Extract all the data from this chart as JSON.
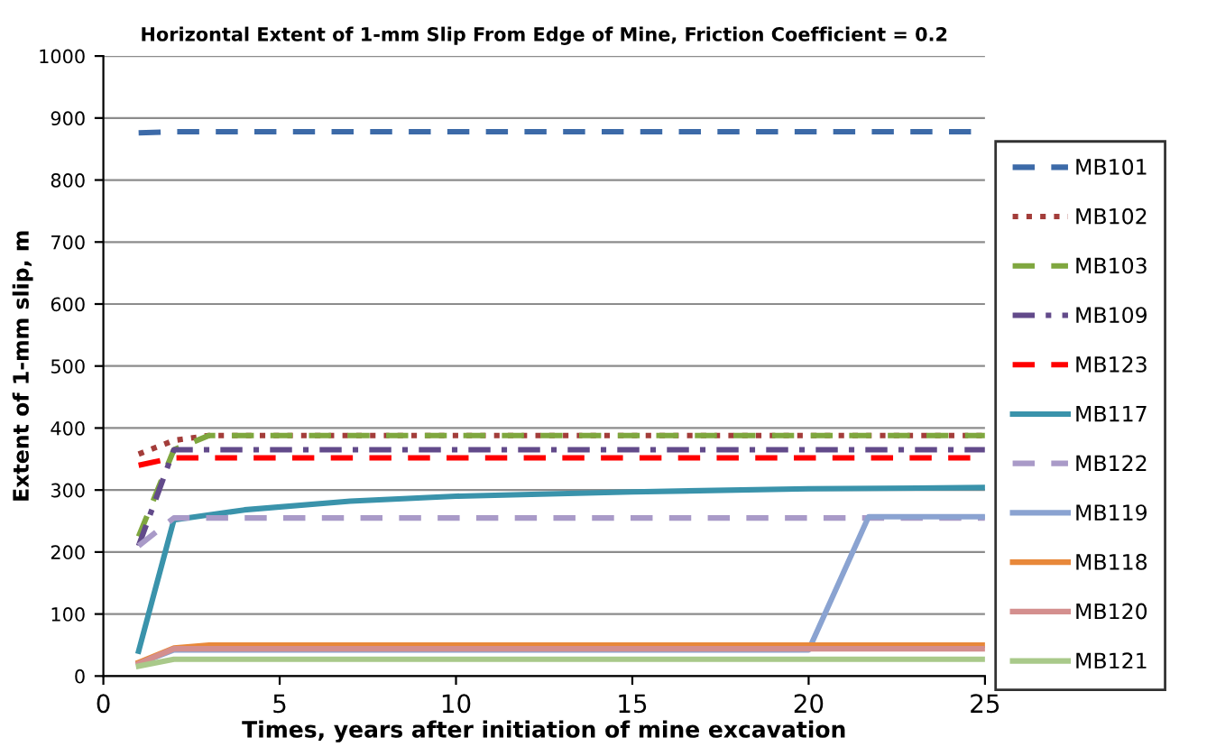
{
  "chart_data": {
    "type": "line",
    "title": "Horizontal Extent of 1-mm Slip From Edge of Mine, Friction Coefficient = 0.2",
    "xlabel": "Times, years after initiation of mine excavation",
    "ylabel": "Extent of 1-mm slip, m",
    "xlim": [
      0,
      25
    ],
    "xticks": [
      0,
      5,
      10,
      15,
      20,
      25
    ],
    "ylim": [
      0,
      1000
    ],
    "yticks": [
      0,
      100,
      200,
      300,
      400,
      500,
      600,
      700,
      800,
      900,
      1000
    ],
    "grid": "y",
    "legend": "right",
    "marker": "none",
    "series": [
      {
        "name": "MB101",
        "color": "#3c6aa8",
        "line_style": "dashed",
        "x": [
          1,
          2,
          25
        ],
        "values": [
          876,
          878,
          878
        ]
      },
      {
        "name": "MB102",
        "color": "#a33d3a",
        "line_style": "dotted",
        "x": [
          1,
          2,
          3,
          25
        ],
        "values": [
          358,
          380,
          388,
          388
        ]
      },
      {
        "name": "MB103",
        "color": "#7fa73f",
        "line_style": "dashed",
        "x": [
          1,
          2,
          3,
          25
        ],
        "values": [
          225,
          365,
          388,
          388
        ]
      },
      {
        "name": "MB109",
        "color": "#624a8a",
        "line_style": "dashdot",
        "x": [
          1,
          2,
          25
        ],
        "values": [
          210,
          365,
          365
        ]
      },
      {
        "name": "MB123",
        "color": "#ff0000",
        "line_style": "dashed",
        "x": [
          1,
          2,
          25
        ],
        "values": [
          340,
          352,
          352
        ]
      },
      {
        "name": "MB117",
        "color": "#3a93ab",
        "line_style": "solid",
        "x": [
          1,
          2,
          4,
          7,
          10,
          15,
          20,
          25
        ],
        "values": [
          40,
          252,
          268,
          282,
          290,
          297,
          302,
          304
        ]
      },
      {
        "name": "MB122",
        "color": "#a99ac8",
        "line_style": "dashed",
        "x": [
          1,
          2,
          25
        ],
        "values": [
          210,
          255,
          255
        ]
      },
      {
        "name": "MB119",
        "color": "#8aa3d1",
        "line_style": "solid",
        "x": [
          1,
          2,
          20,
          21.7,
          25
        ],
        "values": [
          20,
          42,
          42,
          257,
          257
        ]
      },
      {
        "name": "MB118",
        "color": "#e8883a",
        "line_style": "solid",
        "x": [
          1,
          2,
          3,
          25
        ],
        "values": [
          22,
          45,
          50,
          50
        ]
      },
      {
        "name": "MB120",
        "color": "#d48f8e",
        "line_style": "solid",
        "x": [
          1,
          2,
          25
        ],
        "values": [
          20,
          44,
          44
        ]
      },
      {
        "name": "MB121",
        "color": "#a9c98a",
        "line_style": "solid",
        "x": [
          1,
          2,
          25
        ],
        "values": [
          16,
          27,
          27
        ]
      }
    ]
  }
}
